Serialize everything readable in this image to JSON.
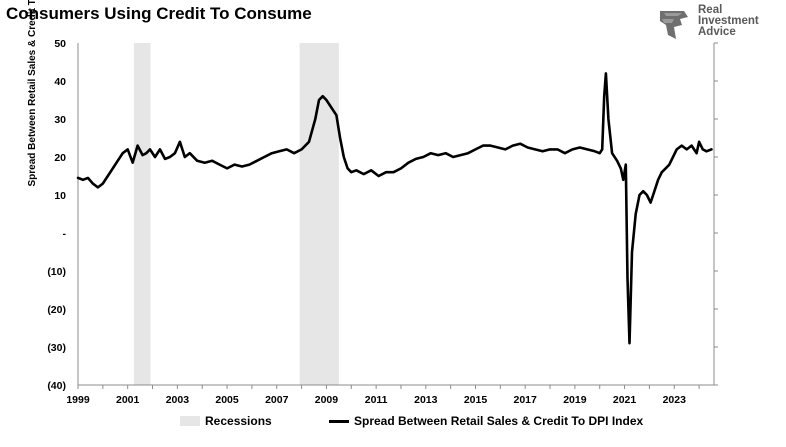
{
  "title": "Consumers Using Credit To Consume",
  "logo": {
    "lines": [
      "Real",
      "Investment",
      "Advice"
    ]
  },
  "chart_data": {
    "type": "line",
    "ylabel": "Spread Between Retail Sales & Credit To DPI Index",
    "xlabel": "",
    "xlim": [
      1999,
      2024.6
    ],
    "ylim": [
      -40,
      50
    ],
    "y_ticks": [
      50,
      40,
      30,
      20,
      10,
      0,
      -10,
      -20,
      -30,
      -40
    ],
    "y_tick_labels": [
      "50",
      "40",
      "30",
      "20",
      "10",
      "-",
      "(10)",
      "(20)",
      "(30)",
      "(40)"
    ],
    "x_ticks": [
      1999,
      2001,
      2003,
      2005,
      2007,
      2009,
      2011,
      2013,
      2015,
      2017,
      2019,
      2021,
      2023
    ],
    "x_tick_labels": [
      "1999",
      "2001",
      "2003",
      "2005",
      "2007",
      "2009",
      "2011",
      "2013",
      "2015",
      "2017",
      "2019",
      "2021",
      "2023"
    ],
    "recessions": [
      {
        "start": 2001.25,
        "end": 2001.92
      },
      {
        "start": 2007.92,
        "end": 2009.5
      }
    ],
    "legend": [
      "Recessions",
      "Spread Between Retail Sales & Credit To DPI Index"
    ],
    "legend_position": "bottom",
    "series": [
      {
        "name": "Spread Between Retail Sales & Credit To DPI Index",
        "color": "#000000",
        "x": [
          1999.0,
          1999.2,
          1999.4,
          1999.6,
          1999.8,
          2000.0,
          2000.2,
          2000.4,
          2000.6,
          2000.8,
          2001.0,
          2001.2,
          2001.4,
          2001.6,
          2001.75,
          2001.9,
          2002.1,
          2002.3,
          2002.5,
          2002.7,
          2002.9,
          2003.1,
          2003.3,
          2003.5,
          2003.8,
          2004.1,
          2004.4,
          2004.7,
          2005.0,
          2005.3,
          2005.6,
          2005.9,
          2006.2,
          2006.5,
          2006.8,
          2007.1,
          2007.4,
          2007.7,
          2008.0,
          2008.3,
          2008.55,
          2008.7,
          2008.85,
          2009.0,
          2009.2,
          2009.4,
          2009.55,
          2009.7,
          2009.85,
          2010.0,
          2010.2,
          2010.5,
          2010.8,
          2011.1,
          2011.4,
          2011.7,
          2012.0,
          2012.3,
          2012.6,
          2012.9,
          2013.2,
          2013.5,
          2013.8,
          2014.1,
          2014.4,
          2014.7,
          2015.0,
          2015.3,
          2015.6,
          2015.9,
          2016.2,
          2016.5,
          2016.8,
          2017.1,
          2017.4,
          2017.7,
          2018.0,
          2018.3,
          2018.6,
          2018.9,
          2019.2,
          2019.5,
          2019.8,
          2020.0,
          2020.1,
          2020.18,
          2020.25,
          2020.35,
          2020.5,
          2020.7,
          2020.85,
          2020.95,
          2021.05,
          2021.12,
          2021.2,
          2021.3,
          2021.45,
          2021.6,
          2021.75,
          2021.9,
          2022.05,
          2022.2,
          2022.35,
          2022.5,
          2022.65,
          2022.8,
          2022.95,
          2023.1,
          2023.3,
          2023.5,
          2023.7,
          2023.9,
          2024.0,
          2024.15,
          2024.3,
          2024.5
        ],
        "values": [
          14.5,
          14,
          14.5,
          13,
          12,
          13,
          15,
          17,
          19,
          21,
          22,
          18.5,
          23,
          20.5,
          21,
          22,
          20,
          22,
          19.5,
          20,
          21,
          24,
          20,
          21,
          19,
          18.5,
          19,
          18,
          17,
          18,
          17.5,
          18,
          19,
          20,
          21,
          21.5,
          22,
          21,
          22,
          24,
          30,
          35,
          36,
          35,
          33,
          31,
          25,
          20,
          17,
          16,
          16.5,
          15.5,
          16.5,
          15,
          16,
          16,
          17,
          18.5,
          19.5,
          20,
          21,
          20.5,
          21,
          20,
          20.5,
          21,
          22,
          23,
          23,
          22.5,
          22,
          23,
          23.5,
          22.5,
          22,
          21.5,
          22,
          22,
          21,
          22,
          22.5,
          22,
          21.5,
          21,
          22,
          36,
          42,
          30,
          21,
          19,
          17,
          14,
          18,
          -12,
          -29,
          -5,
          5,
          10,
          11,
          10,
          8,
          11,
          14,
          16,
          17,
          18,
          20,
          22,
          23,
          22,
          23,
          21,
          24,
          22,
          21.5,
          22
        ]
      }
    ]
  }
}
